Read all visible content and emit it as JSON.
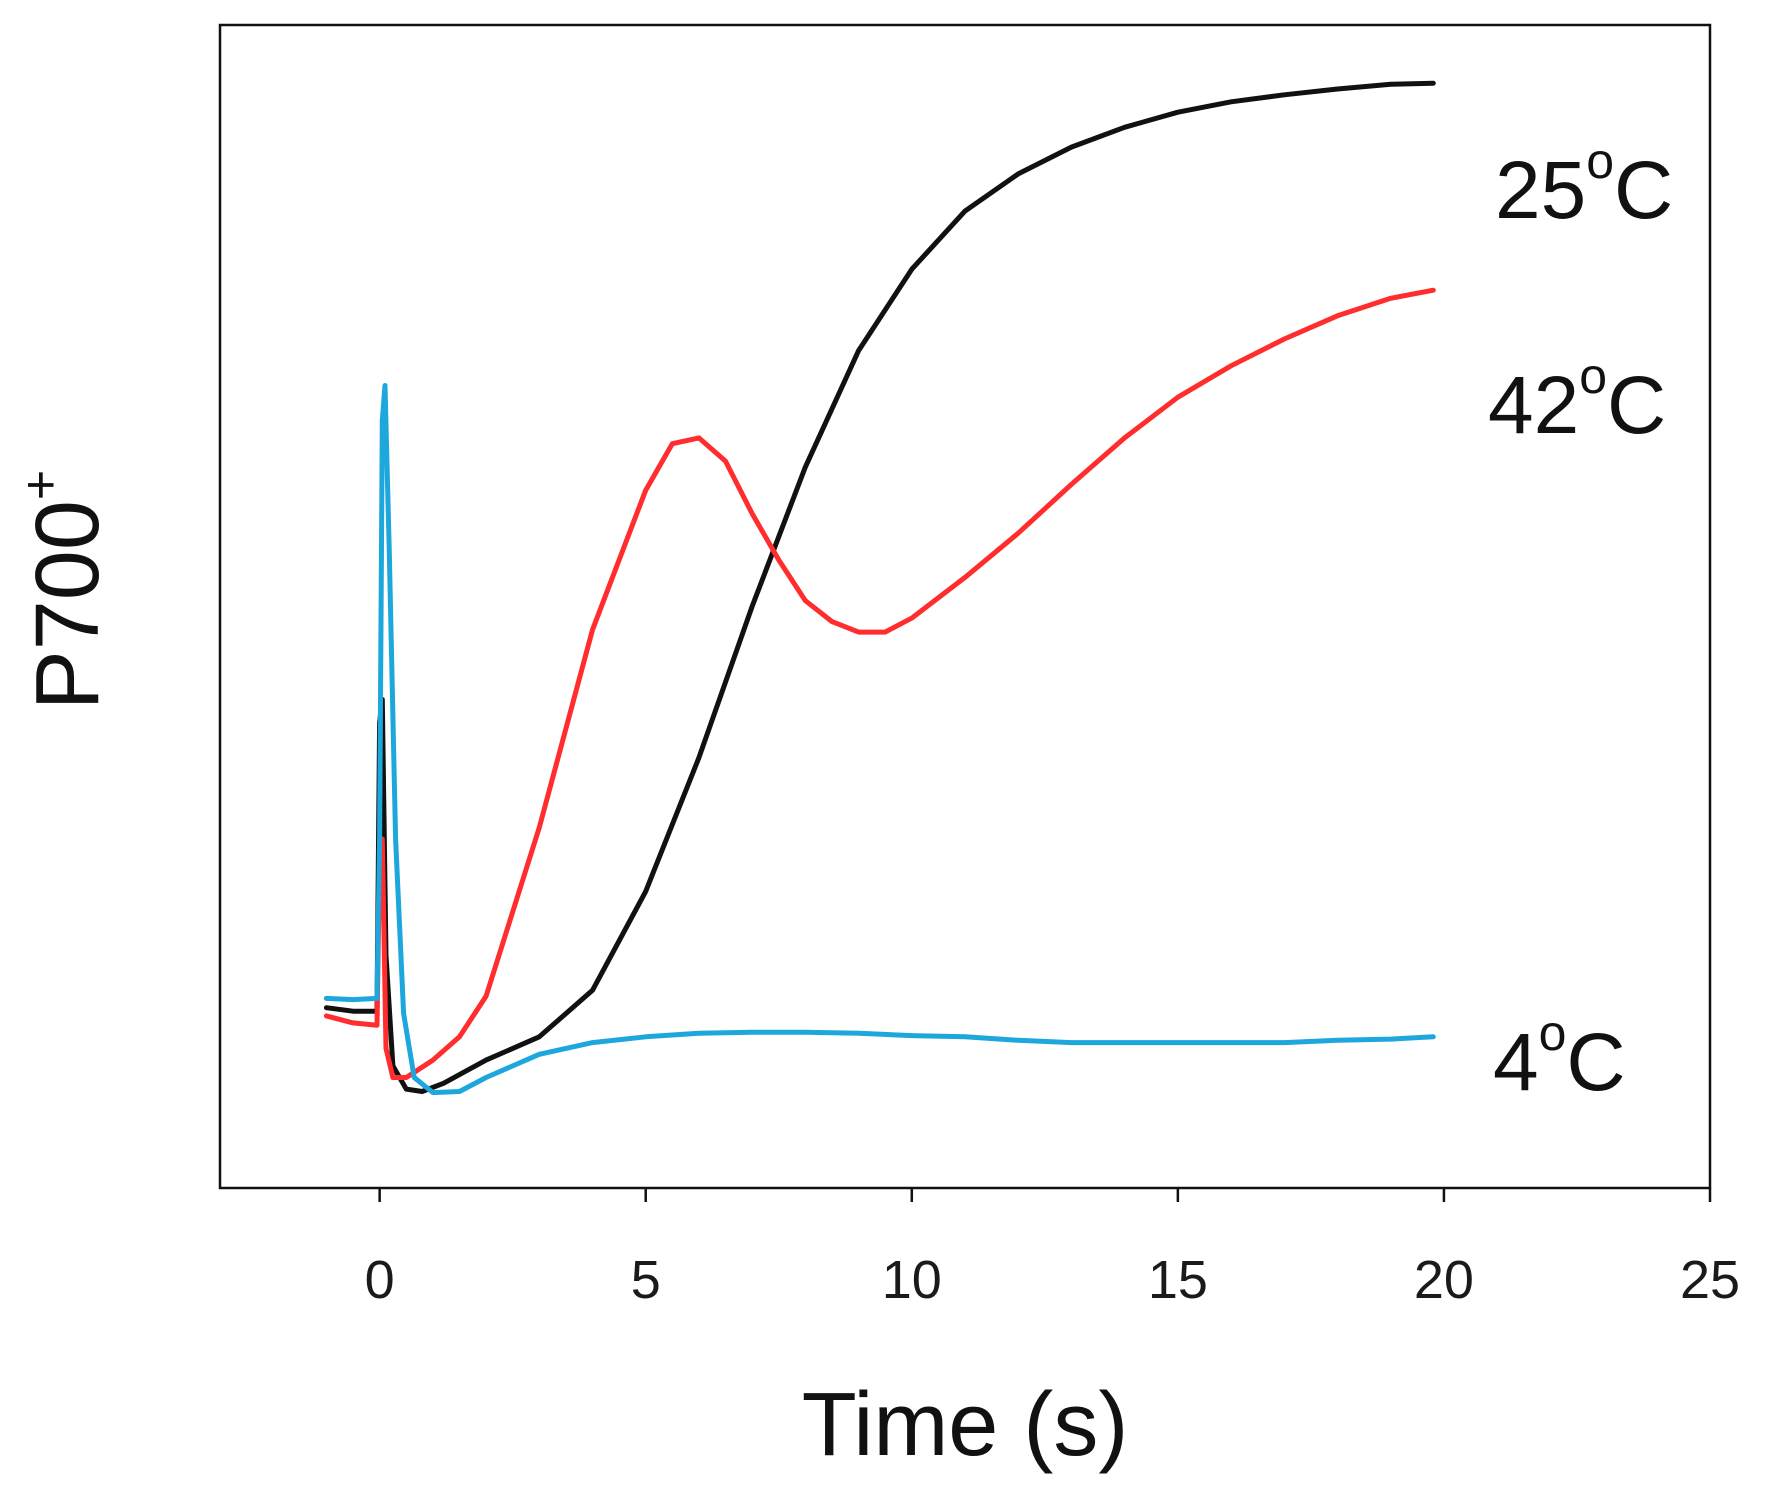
{
  "chart_data": {
    "type": "line",
    "title": "",
    "xlabel": "Time (s)",
    "ylabel": "P700",
    "ylabel_superscript": "+",
    "xlim": [
      -3,
      25
    ],
    "ylim": [
      0,
      1
    ],
    "xticks": [
      0,
      5,
      10,
      15,
      20,
      25
    ],
    "xtick_labels": [
      "0",
      "5",
      "10",
      "15",
      "20",
      "25"
    ],
    "y_tick_labels_shown": false,
    "grid": false,
    "series": [
      {
        "name": "25°C",
        "label_main": "25",
        "label_sup": "o",
        "label_unit": "C",
        "color": "#111111",
        "points": [
          [
            -1,
            0.155
          ],
          [
            -0.5,
            0.152
          ],
          [
            -0.05,
            0.152
          ],
          [
            0,
            0.4
          ],
          [
            0.05,
            0.42
          ],
          [
            0.12,
            0.2
          ],
          [
            0.25,
            0.105
          ],
          [
            0.5,
            0.085
          ],
          [
            0.8,
            0.083
          ],
          [
            1.2,
            0.09
          ],
          [
            2,
            0.11
          ],
          [
            3,
            0.13
          ],
          [
            4,
            0.17
          ],
          [
            5,
            0.255
          ],
          [
            6,
            0.37
          ],
          [
            7,
            0.5
          ],
          [
            8,
            0.62
          ],
          [
            9,
            0.72
          ],
          [
            10,
            0.79
          ],
          [
            11,
            0.84
          ],
          [
            12,
            0.872
          ],
          [
            13,
            0.895
          ],
          [
            14,
            0.912
          ],
          [
            15,
            0.925
          ],
          [
            16,
            0.934
          ],
          [
            17,
            0.94
          ],
          [
            18,
            0.945
          ],
          [
            19,
            0.949
          ],
          [
            19.8,
            0.95
          ]
        ]
      },
      {
        "name": "42°C",
        "label_main": "42",
        "label_sup": "o",
        "label_unit": "C",
        "color": "#ff2d2d",
        "points": [
          [
            -1,
            0.148
          ],
          [
            -0.5,
            0.142
          ],
          [
            -0.05,
            0.14
          ],
          [
            0,
            0.285
          ],
          [
            0.05,
            0.3
          ],
          [
            0.12,
            0.12
          ],
          [
            0.25,
            0.095
          ],
          [
            0.5,
            0.095
          ],
          [
            1,
            0.11
          ],
          [
            1.5,
            0.13
          ],
          [
            2,
            0.165
          ],
          [
            3,
            0.31
          ],
          [
            4,
            0.48
          ],
          [
            5,
            0.6
          ],
          [
            5.5,
            0.64
          ],
          [
            6,
            0.645
          ],
          [
            6.5,
            0.625
          ],
          [
            7,
            0.58
          ],
          [
            7.5,
            0.54
          ],
          [
            8,
            0.505
          ],
          [
            8.5,
            0.487
          ],
          [
            9,
            0.478
          ],
          [
            9.5,
            0.478
          ],
          [
            10,
            0.49
          ],
          [
            11,
            0.525
          ],
          [
            12,
            0.563
          ],
          [
            13,
            0.605
          ],
          [
            14,
            0.645
          ],
          [
            15,
            0.68
          ],
          [
            16,
            0.707
          ],
          [
            17,
            0.73
          ],
          [
            18,
            0.75
          ],
          [
            19,
            0.765
          ],
          [
            19.8,
            0.772
          ]
        ]
      },
      {
        "name": "4°C",
        "label_main": "4",
        "label_sup": "o",
        "label_unit": "C",
        "color": "#1ea7dd",
        "points": [
          [
            -1,
            0.163
          ],
          [
            -0.5,
            0.162
          ],
          [
            -0.05,
            0.163
          ],
          [
            0,
            0.3
          ],
          [
            0.05,
            0.66
          ],
          [
            0.1,
            0.69
          ],
          [
            0.18,
            0.55
          ],
          [
            0.3,
            0.3
          ],
          [
            0.45,
            0.15
          ],
          [
            0.65,
            0.095
          ],
          [
            1,
            0.082
          ],
          [
            1.5,
            0.083
          ],
          [
            2,
            0.095
          ],
          [
            3,
            0.115
          ],
          [
            4,
            0.125
          ],
          [
            5,
            0.13
          ],
          [
            6,
            0.133
          ],
          [
            7,
            0.134
          ],
          [
            8,
            0.134
          ],
          [
            9,
            0.133
          ],
          [
            10,
            0.131
          ],
          [
            11,
            0.13
          ],
          [
            12,
            0.127
          ],
          [
            13,
            0.125
          ],
          [
            14,
            0.125
          ],
          [
            15,
            0.125
          ],
          [
            16,
            0.125
          ],
          [
            17,
            0.125
          ],
          [
            18,
            0.127
          ],
          [
            19,
            0.128
          ],
          [
            19.8,
            0.13
          ]
        ]
      }
    ]
  }
}
